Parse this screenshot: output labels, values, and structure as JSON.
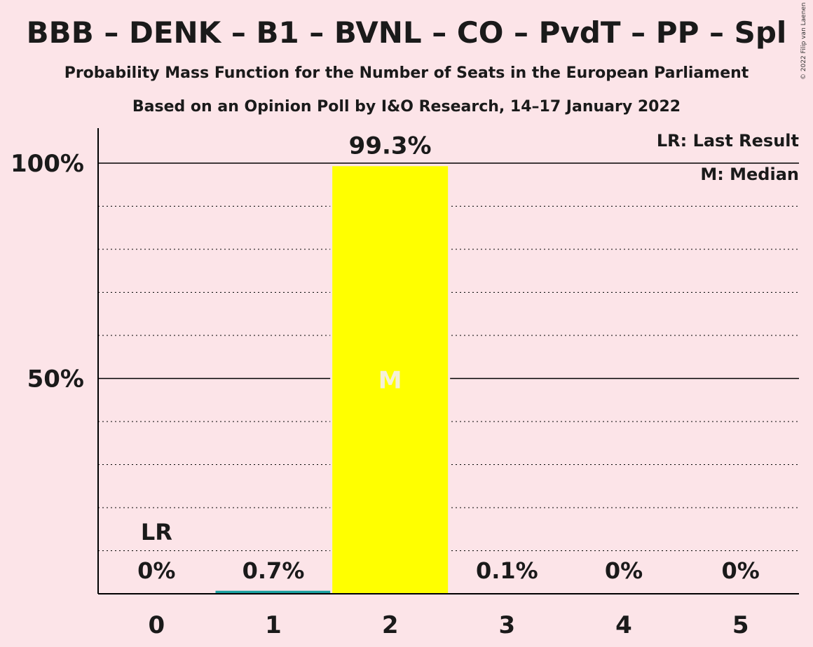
{
  "title": "BBB – DENK – B1 – BVNL – CO – PvdT – PP – Spl",
  "subtitle": "Probability Mass Function for the Number of Seats in the European Parliament",
  "subtitle2": "Based on an Opinion Poll by I&O Research, 14–17 January 2022",
  "copyright": "© 2022 Filip van Laenen",
  "legend": {
    "lr": "LR: Last Result",
    "m": "M: Median"
  },
  "colors": {
    "background": "#FCE4E8",
    "median_bar": "#FFFF00",
    "other_bar": "#1AA0A0",
    "text": "#1a1a1a"
  },
  "chart_data": {
    "type": "bar",
    "categories": [
      "0",
      "1",
      "2",
      "3",
      "4",
      "5"
    ],
    "values": [
      0,
      0.7,
      99.3,
      0.1,
      0,
      0
    ],
    "data_labels": [
      "0%",
      "0.7%",
      "99.3%",
      "0.1%",
      "0%",
      "0%"
    ],
    "ylim": [
      0,
      110
    ],
    "ytick_labels": [
      {
        "value": 50,
        "label": "50%"
      },
      {
        "value": 100,
        "label": "100%"
      }
    ],
    "minor_gridlines": [
      10,
      20,
      30,
      40,
      60,
      70,
      80,
      90
    ],
    "median_index": 2,
    "median_marker": "M",
    "last_result_index": 0,
    "last_result_marker": "LR",
    "legend_placement": "top-right"
  }
}
